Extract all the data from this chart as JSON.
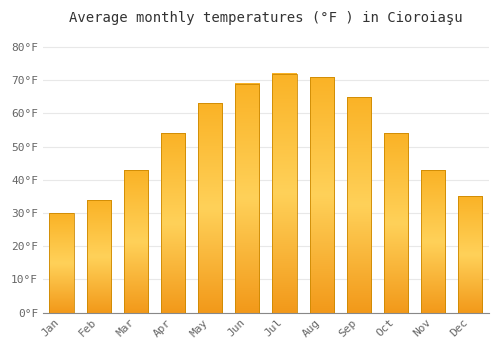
{
  "title": "Average monthly temperatures (°F ) in Cioroiaşu",
  "months": [
    "Jan",
    "Feb",
    "Mar",
    "Apr",
    "May",
    "Jun",
    "Jul",
    "Aug",
    "Sep",
    "Oct",
    "Nov",
    "Dec"
  ],
  "values": [
    30,
    34,
    43,
    54,
    63,
    69,
    72,
    71,
    65,
    54,
    43,
    35
  ],
  "bar_color_bottom": "#F5A623",
  "bar_color_top": "#FFD070",
  "bar_color_side": "#E08C00",
  "background_color": "#ffffff",
  "plot_bg_color": "#ffffff",
  "grid_color": "#e8e8e8",
  "ylim": [
    0,
    85
  ],
  "yticks": [
    0,
    10,
    20,
    30,
    40,
    50,
    60,
    70,
    80
  ],
  "ytick_labels": [
    "0°F",
    "10°F",
    "20°F",
    "30°F",
    "40°F",
    "50°F",
    "60°F",
    "70°F",
    "80°F"
  ],
  "title_fontsize": 10,
  "tick_fontsize": 8,
  "bar_width": 0.65
}
